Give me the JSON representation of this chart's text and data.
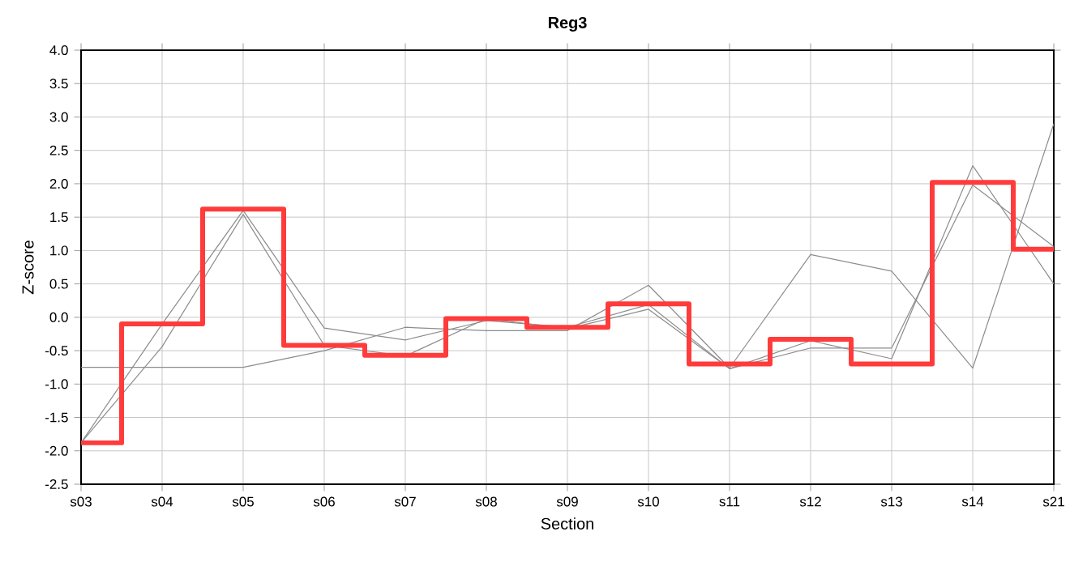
{
  "chart_data": {
    "type": "line",
    "title": "Reg3",
    "xlabel": "Section",
    "ylabel": "Z-score",
    "categories": [
      "s03",
      "s04",
      "s05",
      "s06",
      "s07",
      "s08",
      "s09",
      "s10",
      "s11",
      "s12",
      "s13",
      "s14",
      "s21"
    ],
    "ylim": [
      -2.5,
      4.0
    ],
    "yticks": [
      {
        "value": -2.5,
        "label": "-2.5"
      },
      {
        "value": -2.0,
        "label": "-2.0"
      },
      {
        "value": -1.5,
        "label": "-1.5"
      },
      {
        "value": -1.0,
        "label": "-1.0"
      },
      {
        "value": -0.5,
        "label": "-0.5"
      },
      {
        "value": 0.0,
        "label": "0.0"
      },
      {
        "value": 0.5,
        "label": "0.5"
      },
      {
        "value": 1.0,
        "label": "1.0"
      },
      {
        "value": 1.5,
        "label": "1.5"
      },
      {
        "value": 2.0,
        "label": "2.0"
      },
      {
        "value": 2.5,
        "label": "2.5"
      },
      {
        "value": 3.0,
        "label": "3.0"
      },
      {
        "value": 3.5,
        "label": "3.5"
      },
      {
        "value": 4.0,
        "label": "4.0"
      }
    ],
    "grid": true,
    "marker": "none",
    "line_style": "solid",
    "series": [
      {
        "color": "#8c8c8c",
        "values": [
          -0.75,
          -0.75,
          -0.75,
          -0.5,
          -0.15,
          -0.2,
          -0.2,
          0.48,
          -0.76,
          0.94,
          0.69,
          -0.76,
          2.9
        ]
      },
      {
        "color": "#8c8c8c",
        "values": [
          -1.88,
          -0.1,
          1.6,
          -0.16,
          -0.34,
          -0.05,
          -0.15,
          0.19,
          -0.77,
          -0.35,
          -0.62,
          2.27,
          0.5
        ]
      },
      {
        "color": "#8c8c8c",
        "values": [
          -1.88,
          -0.44,
          1.54,
          -0.42,
          -0.58,
          -0.02,
          -0.17,
          0.12,
          -0.77,
          -0.46,
          -0.46,
          1.98,
          1.06
        ]
      },
      {
        "type": "step",
        "color": "#ff3b3b",
        "values": [
          -1.88,
          -0.1,
          1.62,
          -0.42,
          -0.57,
          -0.02,
          -0.15,
          0.2,
          -0.7,
          -0.33,
          -0.7,
          2.02,
          1.02
        ]
      }
    ]
  }
}
